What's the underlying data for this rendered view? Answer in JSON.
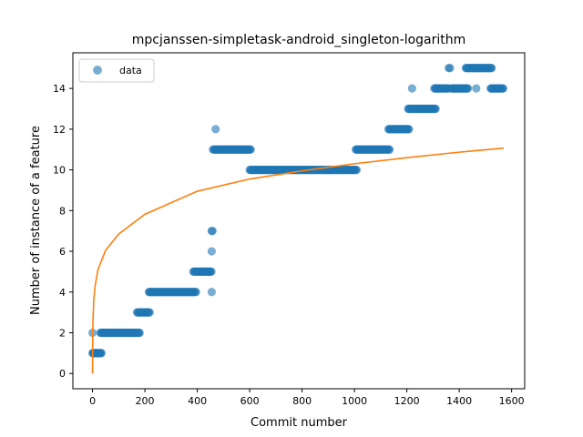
{
  "chart_data": {
    "type": "scatter",
    "title": "mpcjanssen-simpletask-android_singleton-logarithm",
    "xlabel": "Commit number",
    "ylabel": "Number of instance of a feature",
    "xlim": [
      -75,
      1650
    ],
    "ylim": [
      -0.75,
      15.75
    ],
    "xticks": [
      0,
      200,
      400,
      600,
      800,
      1000,
      1200,
      1400,
      1600
    ],
    "yticks": [
      0,
      2,
      4,
      6,
      8,
      10,
      12,
      14
    ],
    "grid": false,
    "legend": {
      "position": "top-left",
      "entries": [
        "data"
      ]
    },
    "colors": {
      "data": "#1f77b4",
      "fit": "#ff7f0e"
    },
    "series": [
      {
        "name": "data",
        "kind": "scatter",
        "segments": [
          {
            "y": 1,
            "x_start": 0,
            "x_end": 35,
            "step": 2
          },
          {
            "y": 2,
            "x_start": 30,
            "x_end": 180,
            "step": 3
          },
          {
            "y": 3,
            "x_start": 170,
            "x_end": 220,
            "step": 3
          },
          {
            "y": 4,
            "x_start": 215,
            "x_end": 395,
            "step": 3
          },
          {
            "y": 5,
            "x_start": 385,
            "x_end": 455,
            "step": 3
          },
          {
            "y": 7,
            "x_start": 455,
            "x_end": 458,
            "step": 3
          },
          {
            "y": 11,
            "x_start": 460,
            "x_end": 605,
            "step": 3
          },
          {
            "y": 10,
            "x_start": 600,
            "x_end": 1010,
            "step": 3
          },
          {
            "y": 11,
            "x_start": 1005,
            "x_end": 1135,
            "step": 3
          },
          {
            "y": 12,
            "x_start": 1130,
            "x_end": 1210,
            "step": 3
          },
          {
            "y": 13,
            "x_start": 1205,
            "x_end": 1310,
            "step": 3
          },
          {
            "y": 14,
            "x_start": 1305,
            "x_end": 1360,
            "step": 3
          },
          {
            "y": 14,
            "x_start": 1370,
            "x_end": 1435,
            "step": 3
          },
          {
            "y": 15,
            "x_start": 1425,
            "x_end": 1525,
            "step": 3
          },
          {
            "y": 14,
            "x_start": 1520,
            "x_end": 1570,
            "step": 3
          }
        ],
        "points": [
          [
            0,
            2
          ],
          [
            455,
            4
          ],
          [
            455,
            6
          ],
          [
            470,
            12
          ],
          [
            1220,
            14
          ],
          [
            1360,
            15
          ],
          [
            1365,
            15
          ],
          [
            1465,
            14
          ]
        ]
      },
      {
        "name": "",
        "kind": "line",
        "model": "logarithmic",
        "x": [
          0,
          1,
          2,
          5,
          10,
          20,
          50,
          100,
          200,
          400,
          600,
          800,
          1000,
          1200,
          1400,
          1570
        ],
        "y": [
          0.0,
          2.06,
          2.72,
          3.65,
          4.3,
          5.07,
          6.05,
          6.85,
          7.82,
          8.95,
          9.55,
          9.95,
          10.3,
          10.6,
          10.87,
          11.07
        ]
      }
    ]
  }
}
